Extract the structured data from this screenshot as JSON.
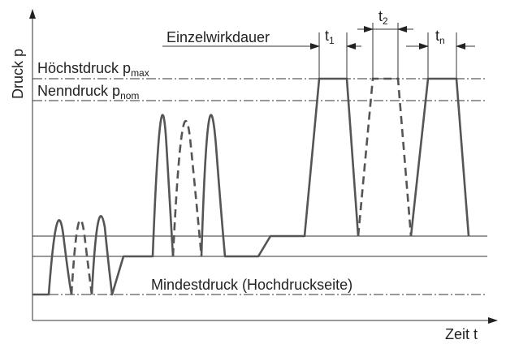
{
  "axes": {
    "y_label": "Druck p",
    "x_label": "Zeit t"
  },
  "levels": [
    {
      "label": "Höchstdruck p",
      "subscript": "max"
    },
    {
      "label": "Nenndruck p",
      "subscript": "nom"
    },
    {
      "label": "Mindestdruck (Hochdruckseite)"
    }
  ],
  "duration": {
    "label": "Einzelwirkdauer",
    "intervals": [
      {
        "symbol": "t",
        "subscript": "1"
      },
      {
        "symbol": "t",
        "subscript": "2"
      },
      {
        "symbol": "t",
        "subscript": "n"
      }
    ]
  }
}
